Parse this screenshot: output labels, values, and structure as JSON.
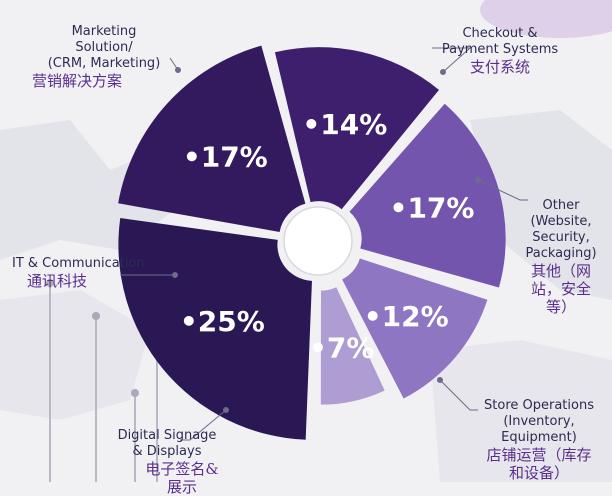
{
  "chart_data": {
    "type": "pie",
    "style": "exploded donut",
    "categories": [
      "Checkout & Payment Systems",
      "Other (Website, Security, Packaging)",
      "Store Operations (Inventory, Equipment)",
      "Digital Signage & Displays",
      "IT & Communication",
      "Marketing Solution/ (CRM, Marketing)"
    ],
    "values": [
      17,
      14,
      17,
      12,
      7,
      25
    ],
    "value_labels": [
      "•17%",
      "•14%",
      "•17%",
      "•12%",
      "•7%",
      "•25%"
    ],
    "colors": [
      "#33195e",
      "#3d1f6e",
      "#7355ad",
      "#8e76c2",
      "#ad9dd2",
      "#2a1855"
    ],
    "slices": [
      {
        "en": "Checkout &\nPayment Systems",
        "zh": "支付系统"
      },
      {
        "en": "Other\n(Website,\nSecurity,\nPackaging)",
        "zh": "其他（网\n站，安全\n等）"
      },
      {
        "en": "Store Operations\n(Inventory,\nEquipment)",
        "zh": "店铺运营（库存\n和设备）"
      },
      {
        "en": "Digital Signage\n& Displays",
        "zh": "电子签名&展示"
      },
      {
        "en": "IT & Communication",
        "zh": "通讯科技"
      },
      {
        "en": "Marketing\nSolution/\n(CRM, Marketing)",
        "zh": "营销解决方案"
      }
    ]
  }
}
